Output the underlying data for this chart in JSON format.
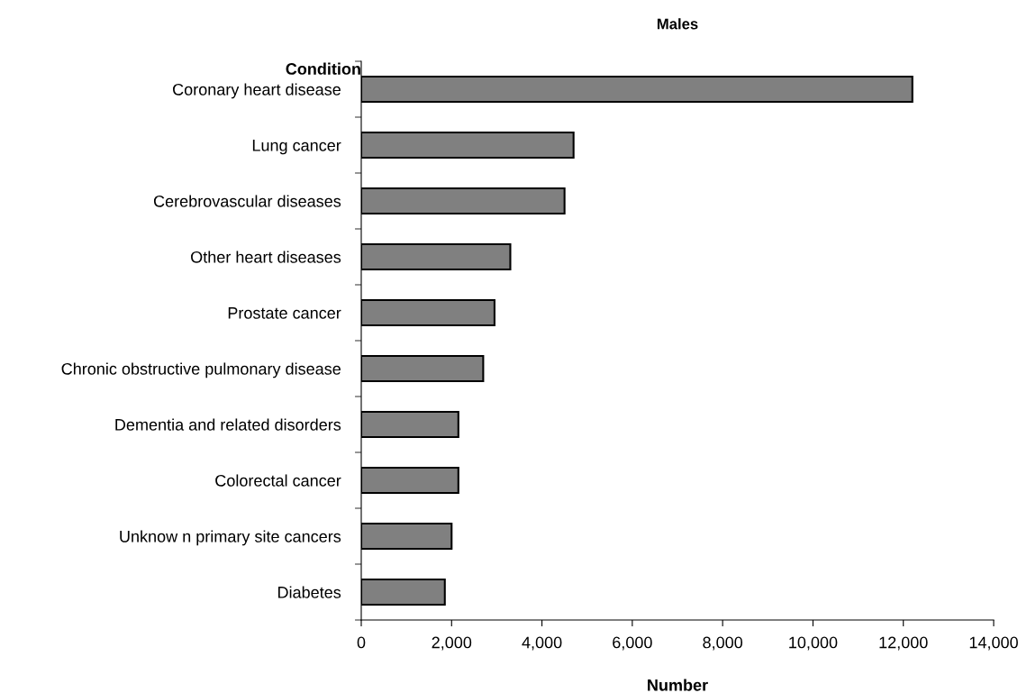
{
  "chart_data": {
    "type": "bar",
    "orientation": "horizontal",
    "title": "Males",
    "ylabel": "Condition",
    "xlabel": "Number",
    "categories": [
      "Coronary heart disease",
      "Lung cancer",
      "Cerebrovascular diseases",
      "Other heart diseases",
      "Prostate cancer",
      "Chronic obstructive pulmonary disease",
      "Dementia and related disorders",
      "Colorectal cancer",
      "Unknow n primary site cancers",
      "Diabetes"
    ],
    "values": [
      12200,
      4700,
      4500,
      3300,
      2950,
      2700,
      2150,
      2150,
      2000,
      1850
    ],
    "color": "#808080",
    "xlim": [
      0,
      14000
    ],
    "xticks": [
      {
        "value": 0,
        "label": "0"
      },
      {
        "value": 2000,
        "label": "2,000"
      },
      {
        "value": 4000,
        "label": "4,000"
      },
      {
        "value": 6000,
        "label": "6,000"
      },
      {
        "value": 8000,
        "label": "8,000"
      },
      {
        "value": 10000,
        "label": "10,000"
      },
      {
        "value": 12000,
        "label": "12,000"
      },
      {
        "value": 14000,
        "label": "14,000"
      }
    ],
    "grid": false,
    "legend": false
  }
}
